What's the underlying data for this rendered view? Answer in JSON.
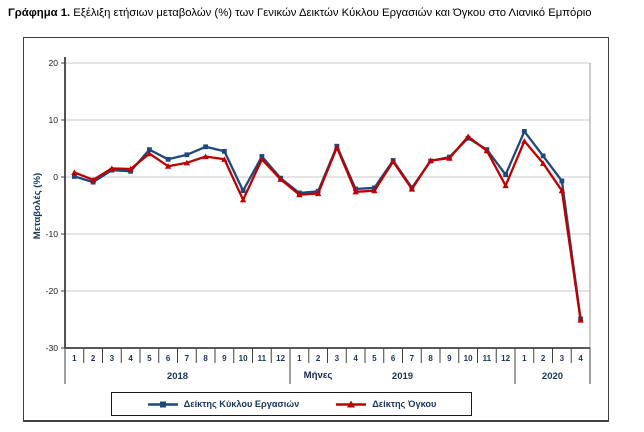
{
  "title": {
    "prefix": "Γράφημα 1.",
    "text": " Εξέλιξη ετήσιων μεταβολών (%) των Γενικών Δεικτών Κύκλου Εργασιών και Όγκου στο Λιανικό Εμπόριο"
  },
  "chart_data": {
    "type": "line",
    "title": "Εξέλιξη ετήσιων μεταβολών (%) των Γενικών Δεικτών Κύκλου Εργασιών και Όγκου στο Λιανικό Εμπόριο",
    "xlabel": "Μήνες",
    "ylabel": "Μεταβολές (%)",
    "ylim": [
      -30,
      20
    ],
    "yticks": [
      20,
      10,
      0,
      -10,
      -20,
      -30
    ],
    "grid": true,
    "legend_position": "bottom",
    "axis_text_color": "#17365D",
    "x_groups": [
      {
        "year": "2018",
        "months": [
          "1",
          "2",
          "3",
          "4",
          "5",
          "6",
          "7",
          "8",
          "9",
          "10",
          "11",
          "12"
        ]
      },
      {
        "year": "2019",
        "months": [
          "1",
          "2",
          "3",
          "4",
          "5",
          "6",
          "7",
          "8",
          "9",
          "10",
          "11",
          "12"
        ]
      },
      {
        "year": "2020",
        "months": [
          "1",
          "2",
          "3",
          "4"
        ]
      }
    ],
    "series": [
      {
        "name": "Δείκτης Κύκλου Εργασιών",
        "color": "#1F497D",
        "marker": "square",
        "values": [
          0.1,
          -0.9,
          1.2,
          1.0,
          4.8,
          3.1,
          3.9,
          5.3,
          4.5,
          -2.4,
          3.6,
          -0.2,
          -2.8,
          -2.5,
          5.4,
          -2.1,
          -1.9,
          2.9,
          -1.9,
          2.8,
          3.5,
          6.8,
          4.8,
          0.4,
          8.0,
          3.7,
          -0.7,
          -24.9
        ]
      },
      {
        "name": "Δείκτης Όγκου",
        "color": "#C00000",
        "marker": "triangle",
        "values": [
          0.8,
          -0.5,
          1.5,
          1.4,
          4.1,
          1.9,
          2.5,
          3.6,
          3.1,
          -4.0,
          3.1,
          -0.4,
          -3.1,
          -2.9,
          5.2,
          -2.6,
          -2.4,
          2.7,
          -2.1,
          2.9,
          3.3,
          7.1,
          4.6,
          -1.5,
          6.3,
          2.4,
          -2.4,
          -25.1
        ]
      }
    ]
  }
}
